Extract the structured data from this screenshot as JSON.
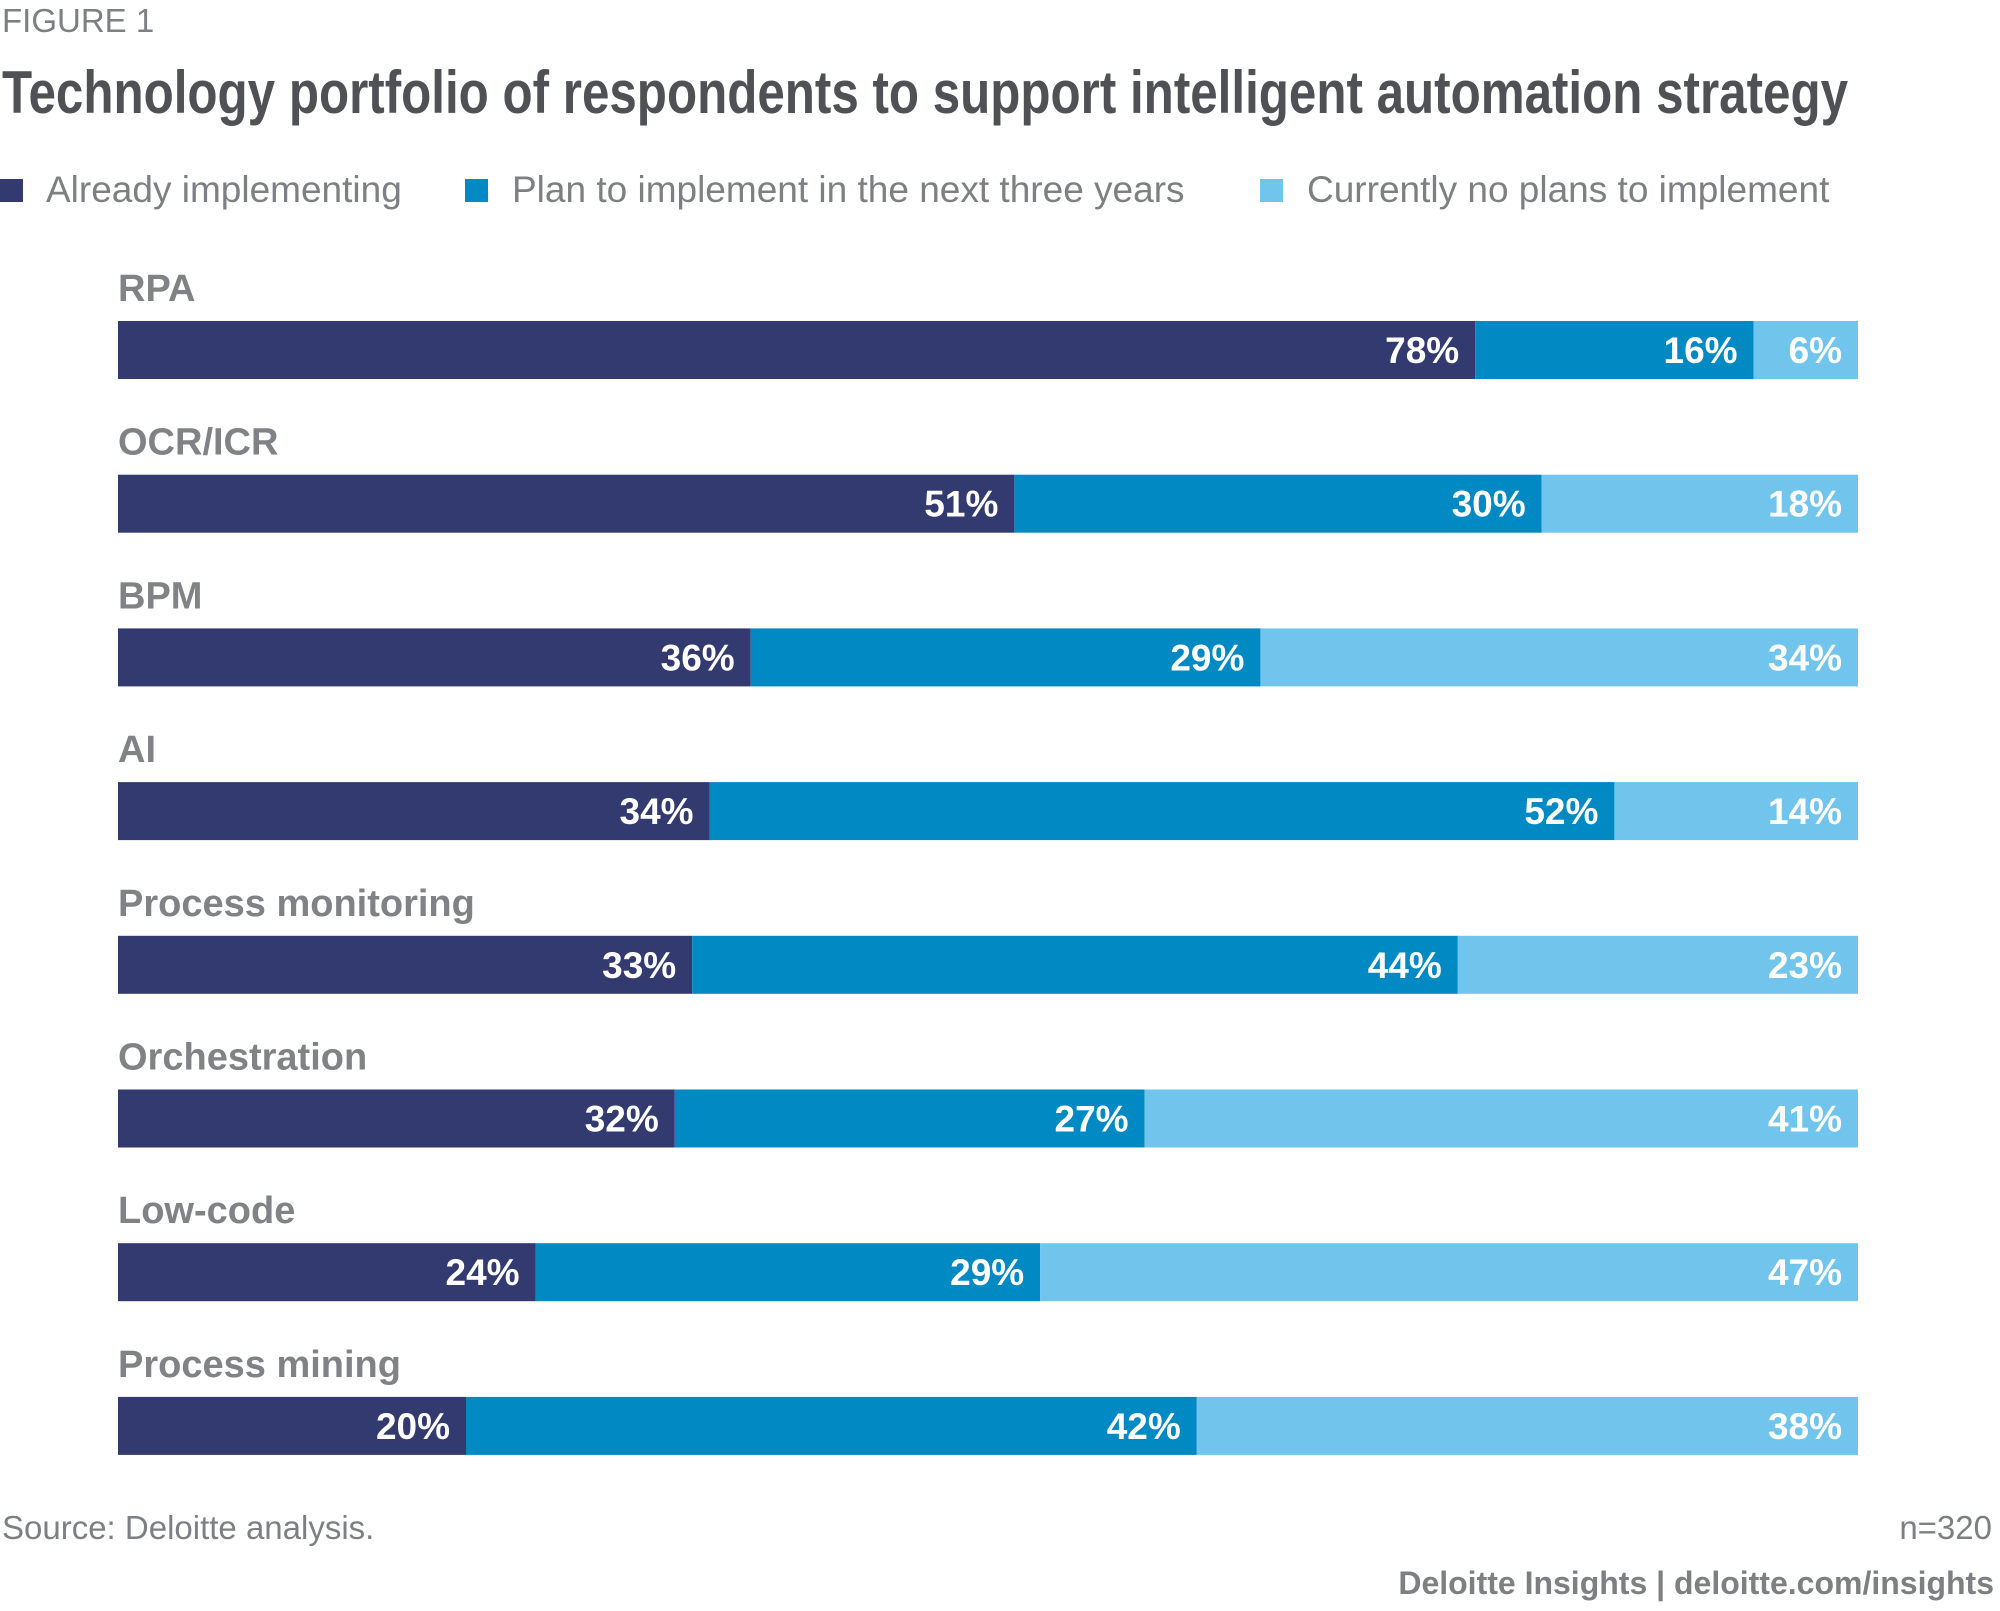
{
  "figure_label": "FIGURE 1",
  "chart_data": {
    "type": "bar",
    "orientation": "horizontal",
    "stacked": true,
    "title": "Technology portfolio of respondents to support intelligent automation strategy",
    "categories": [
      "RPA",
      "OCR/ICR",
      "BPM",
      "AI",
      "Process monitoring",
      "Orchestration",
      "Low-code",
      "Process mining"
    ],
    "series": [
      {
        "name": "Already implementing",
        "color": "#333a6f",
        "values": [
          78,
          51,
          36,
          34,
          33,
          32,
          24,
          20
        ]
      },
      {
        "name": "Plan to implement in the next three years",
        "color": "#0089c3",
        "values": [
          16,
          30,
          29,
          52,
          44,
          27,
          29,
          42
        ]
      },
      {
        "name": "Currently no plans to implement",
        "color": "#71c5ed",
        "values": [
          6,
          18,
          34,
          14,
          23,
          41,
          47,
          38
        ]
      }
    ],
    "value_suffix": "%",
    "xlabel": "",
    "ylabel": "",
    "xlim": [
      0,
      100
    ],
    "grid": false,
    "legend_position": "top-left"
  },
  "footer": {
    "source": "Source: Deloitte analysis.",
    "sample_size": "n=320",
    "brand": "Deloitte Insights | deloitte.com/insights"
  }
}
